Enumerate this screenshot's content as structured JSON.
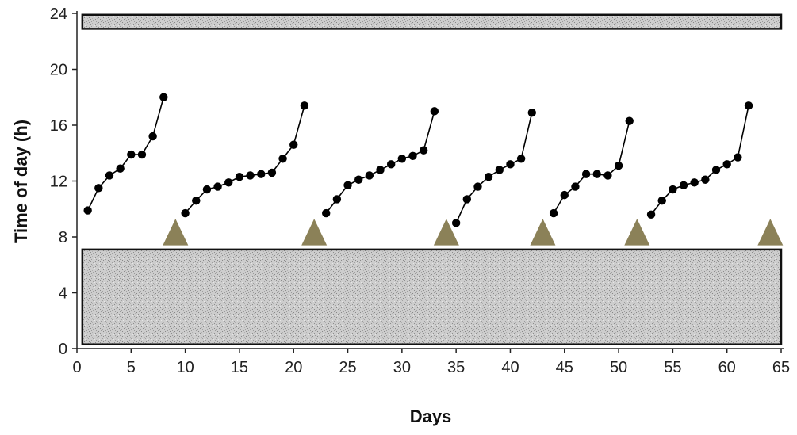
{
  "chart_data": {
    "type": "scatter",
    "title": "",
    "xlabel": "Days",
    "ylabel": "Time of day (h)",
    "xlim": [
      0,
      65
    ],
    "ylim": [
      0,
      24
    ],
    "xticks": [
      0,
      5,
      10,
      15,
      20,
      25,
      30,
      35,
      40,
      45,
      50,
      55,
      60,
      65
    ],
    "yticks": [
      0,
      4,
      8,
      12,
      16,
      20,
      24
    ],
    "grid": false,
    "colors": {
      "shade_fill": "#c8c8c8",
      "points": "#000000",
      "marker": "#8b8158"
    },
    "shaded_bands": [
      {
        "from_day": 0.5,
        "to_day": 65,
        "from_hour": 0.3,
        "to_hour": 7.1
      },
      {
        "from_day": 0.5,
        "to_day": 65,
        "from_hour": 22.9,
        "to_hour": 23.9
      }
    ],
    "series": [
      {
        "x": [
          1,
          2,
          3,
          4,
          5,
          6,
          7,
          8
        ],
        "y": [
          9.9,
          11.5,
          12.4,
          12.9,
          13.9,
          13.9,
          15.2,
          18.0
        ]
      },
      {
        "x": [
          10,
          11,
          12,
          13,
          14,
          15,
          16,
          17,
          18,
          19,
          20,
          21
        ],
        "y": [
          9.7,
          10.6,
          11.4,
          11.6,
          11.9,
          12.3,
          12.4,
          12.5,
          12.6,
          13.6,
          14.6,
          17.4
        ]
      },
      {
        "x": [
          23,
          24,
          25,
          26,
          27,
          28,
          29,
          30,
          31,
          32,
          33
        ],
        "y": [
          9.7,
          10.7,
          11.7,
          12.1,
          12.4,
          12.8,
          13.2,
          13.6,
          13.8,
          14.2,
          17.0
        ]
      },
      {
        "x": [
          35,
          36,
          37,
          38,
          39,
          40,
          41,
          42
        ],
        "y": [
          9.0,
          10.7,
          11.6,
          12.3,
          12.8,
          13.2,
          13.6,
          16.9
        ]
      },
      {
        "x": [
          44,
          45,
          46,
          47,
          48,
          49,
          50,
          51
        ],
        "y": [
          9.7,
          11.0,
          11.6,
          12.5,
          12.5,
          12.4,
          13.1,
          16.3
        ]
      },
      {
        "x": [
          53,
          54,
          55,
          56,
          57,
          58,
          59,
          60,
          61,
          62
        ],
        "y": [
          9.6,
          10.6,
          11.4,
          11.7,
          11.9,
          12.1,
          12.8,
          13.2,
          13.7,
          17.4
        ]
      }
    ],
    "markers": {
      "shape": "triangle",
      "y": 8.5,
      "x": [
        9.1,
        21.9,
        34.1,
        43.0,
        51.7,
        64.0
      ]
    }
  }
}
